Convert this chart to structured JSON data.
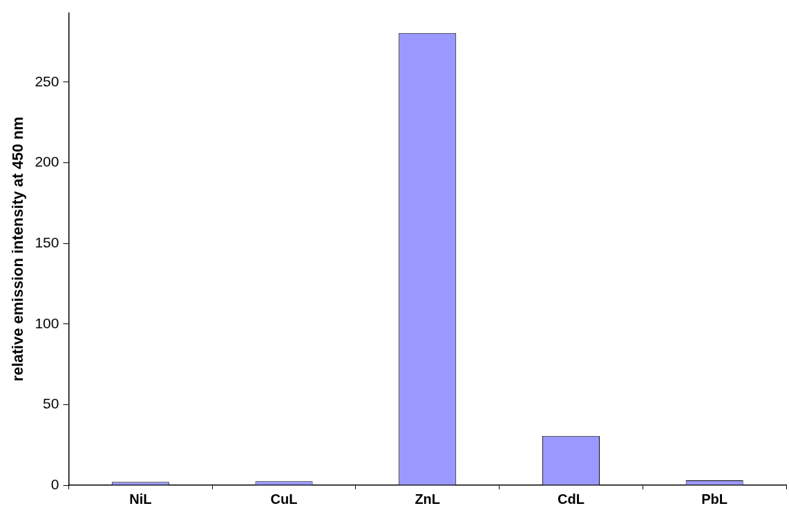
{
  "chart_data": {
    "type": "bar",
    "ylabel": "relative emission intensity at 450 nm",
    "categories": [
      "NiL",
      "CuL",
      "ZnL",
      "CdL",
      "PbL"
    ],
    "values": [
      2,
      2.5,
      280.5,
      30.5,
      3
    ],
    "color": "#9999ff",
    "ylim": [
      0,
      293
    ],
    "yticks": [
      0,
      50,
      100,
      150,
      200,
      250
    ],
    "grid": false,
    "legend": false
  }
}
